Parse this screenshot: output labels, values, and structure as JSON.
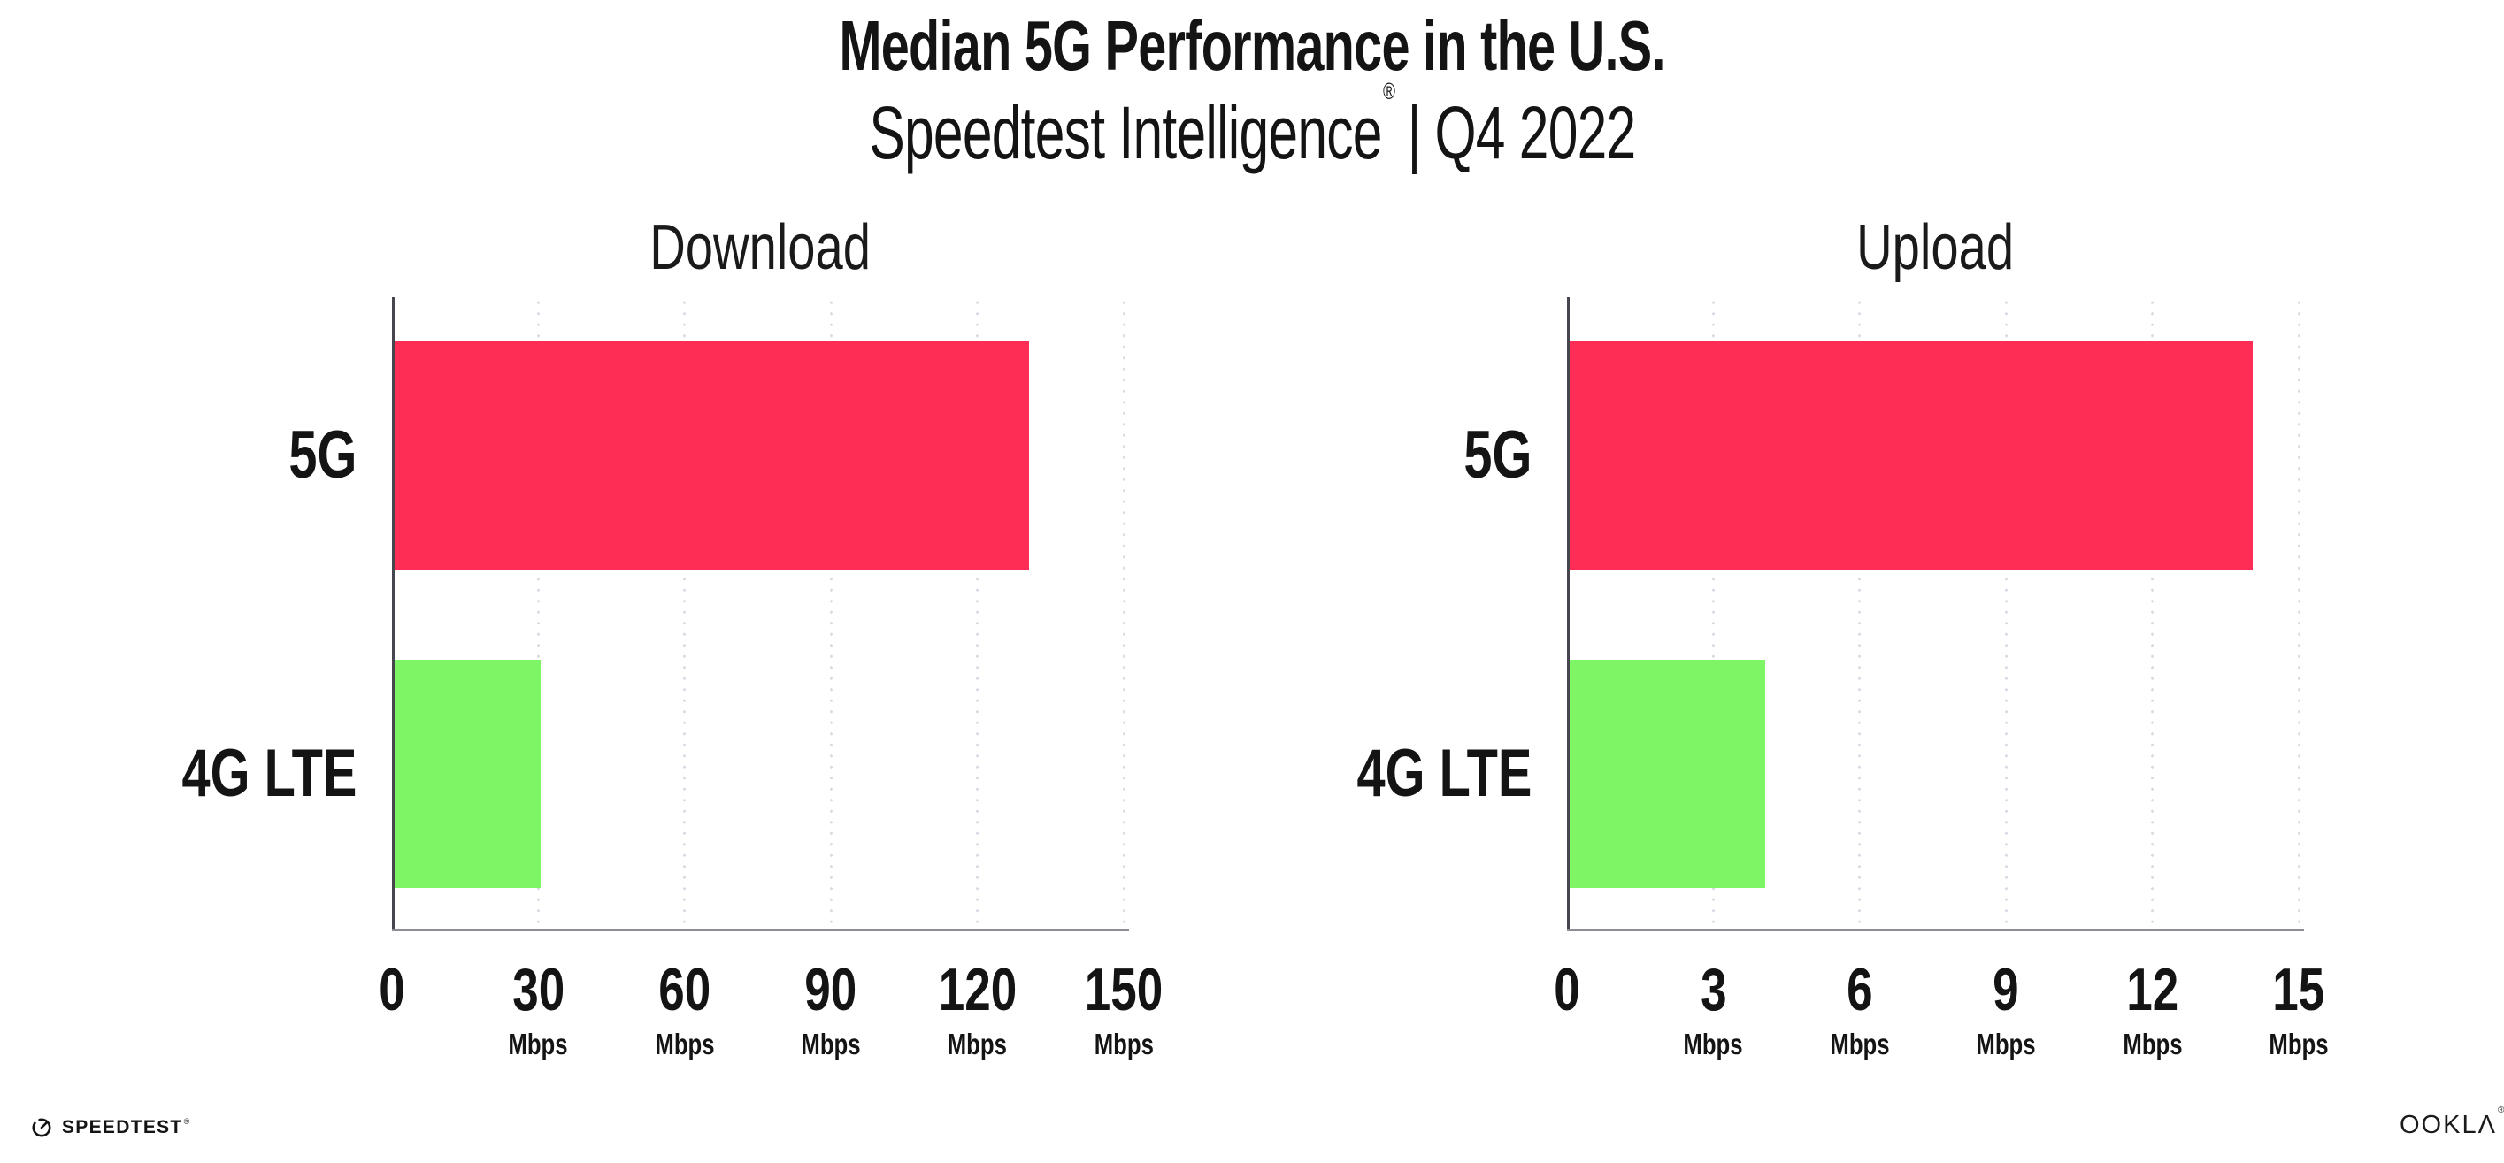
{
  "header": {
    "title": "Median 5G Performance in the U.S.",
    "subtitle": {
      "brand": "Speedtest Intelligence",
      "registered_mark": "®",
      "separator": "|",
      "period": "Q4 2022"
    }
  },
  "chart_data": [
    {
      "type": "bar",
      "orientation": "horizontal",
      "title": "Download",
      "categories": [
        "5G",
        "4G LTE"
      ],
      "values": [
        130,
        30
      ],
      "unit": "Mbps",
      "xlim": [
        0,
        150
      ],
      "xticks": [
        0,
        30,
        60,
        90,
        120,
        150
      ],
      "bar_colors": [
        "#fd2d55",
        "#7df564"
      ],
      "grid": "vertical-dotted",
      "legend": "none"
    },
    {
      "type": "bar",
      "orientation": "horizontal",
      "title": "Upload",
      "categories": [
        "5G",
        "4G LTE"
      ],
      "values": [
        14,
        4
      ],
      "unit": "Mbps",
      "xlim": [
        0,
        15
      ],
      "xticks": [
        0,
        3,
        6,
        9,
        12,
        15
      ],
      "bar_colors": [
        "#fd2d55",
        "#7df564"
      ],
      "grid": "vertical-dotted",
      "legend": "none"
    }
  ],
  "footer": {
    "speedtest": {
      "label": "SPEEDTEST",
      "mark": "®",
      "icon": "speedtest-gauge-icon"
    },
    "ookla": {
      "label_prefix": "OOKL",
      "label_lambda": "Λ",
      "mark": "®"
    }
  },
  "colors": {
    "bar_5g": "#fd2d55",
    "bar_4g_lte": "#7df564",
    "y_axis": "#46464e",
    "x_axis": "#8d8d93",
    "grid_dot": "#d9d9e3",
    "text": "#141414"
  }
}
